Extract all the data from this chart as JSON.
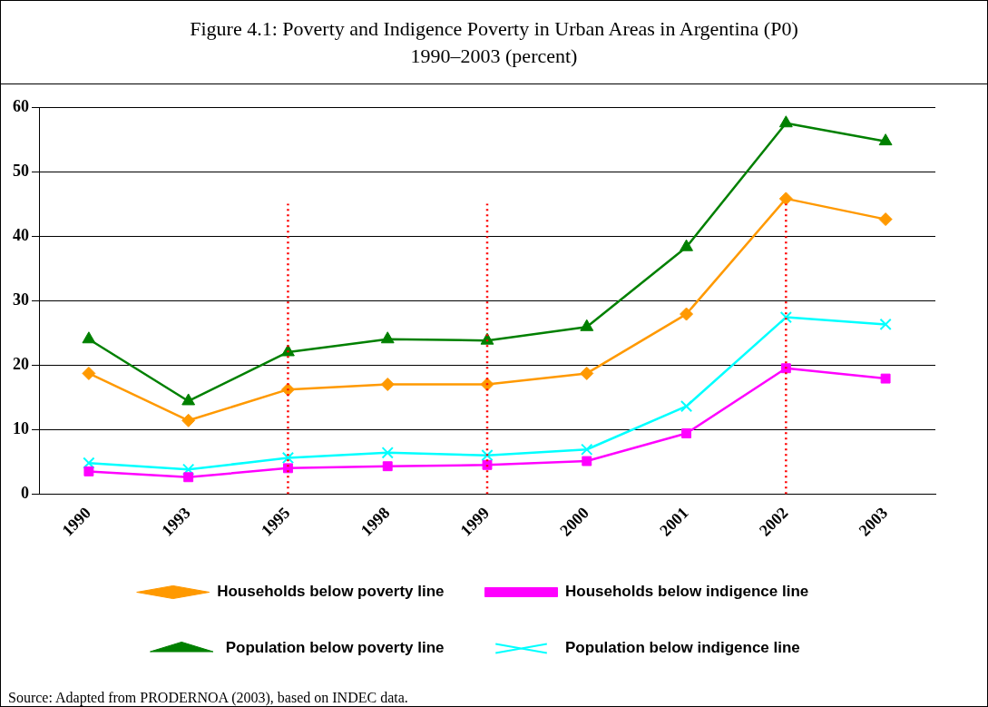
{
  "chart_data": {
    "type": "line",
    "title": "Figure 4.1: Poverty and Indigence Poverty in Urban Areas in Argentina (P0)\n1990–2003 (percent)",
    "categories": [
      "1990",
      "1993",
      "1995",
      "1998",
      "1999",
      "2000",
      "2001",
      "2002",
      "2003"
    ],
    "series": [
      {
        "name": "Households below poverty line",
        "color": "#ff9900",
        "marker": "diamond",
        "values": [
          18.7,
          11.4,
          16.2,
          17.0,
          17.0,
          18.7,
          27.9,
          45.8,
          42.6
        ]
      },
      {
        "name": "Households below indigence line",
        "color": "#ff00ff",
        "marker": "square",
        "values": [
          3.5,
          2.6,
          4.0,
          4.3,
          4.5,
          5.1,
          9.4,
          19.5,
          17.9
        ]
      },
      {
        "name": "Population below poverty line",
        "color": "#008000",
        "marker": "triangle",
        "values": [
          24.0,
          14.4,
          22.0,
          24.0,
          23.8,
          25.9,
          38.3,
          57.5,
          54.7
        ]
      },
      {
        "name": "Population below indigence line",
        "color": "#00ffff",
        "marker": "cross",
        "values": [
          4.8,
          3.8,
          5.6,
          6.4,
          6.0,
          6.9,
          13.6,
          27.4,
          26.3
        ]
      }
    ],
    "ylim": [
      0,
      60
    ],
    "yticks": [
      0,
      10,
      20,
      30,
      40,
      50,
      60
    ],
    "grid": "y",
    "legend": "bottom",
    "line_style": "solid",
    "ref_lines": [
      {
        "axis": "x",
        "value": "1995",
        "label": null,
        "color": "#ff0000",
        "line_style": "dotted"
      },
      {
        "axis": "x",
        "value": "1999",
        "label": null,
        "color": "#ff0000",
        "line_style": "dotted"
      },
      {
        "axis": "x",
        "value": "2002",
        "label": null,
        "color": "#ff0000",
        "line_style": "dotted"
      }
    ],
    "annotations": [
      "Source: Adapted from PRODERNOA (2003), based on INDEC data."
    ]
  }
}
